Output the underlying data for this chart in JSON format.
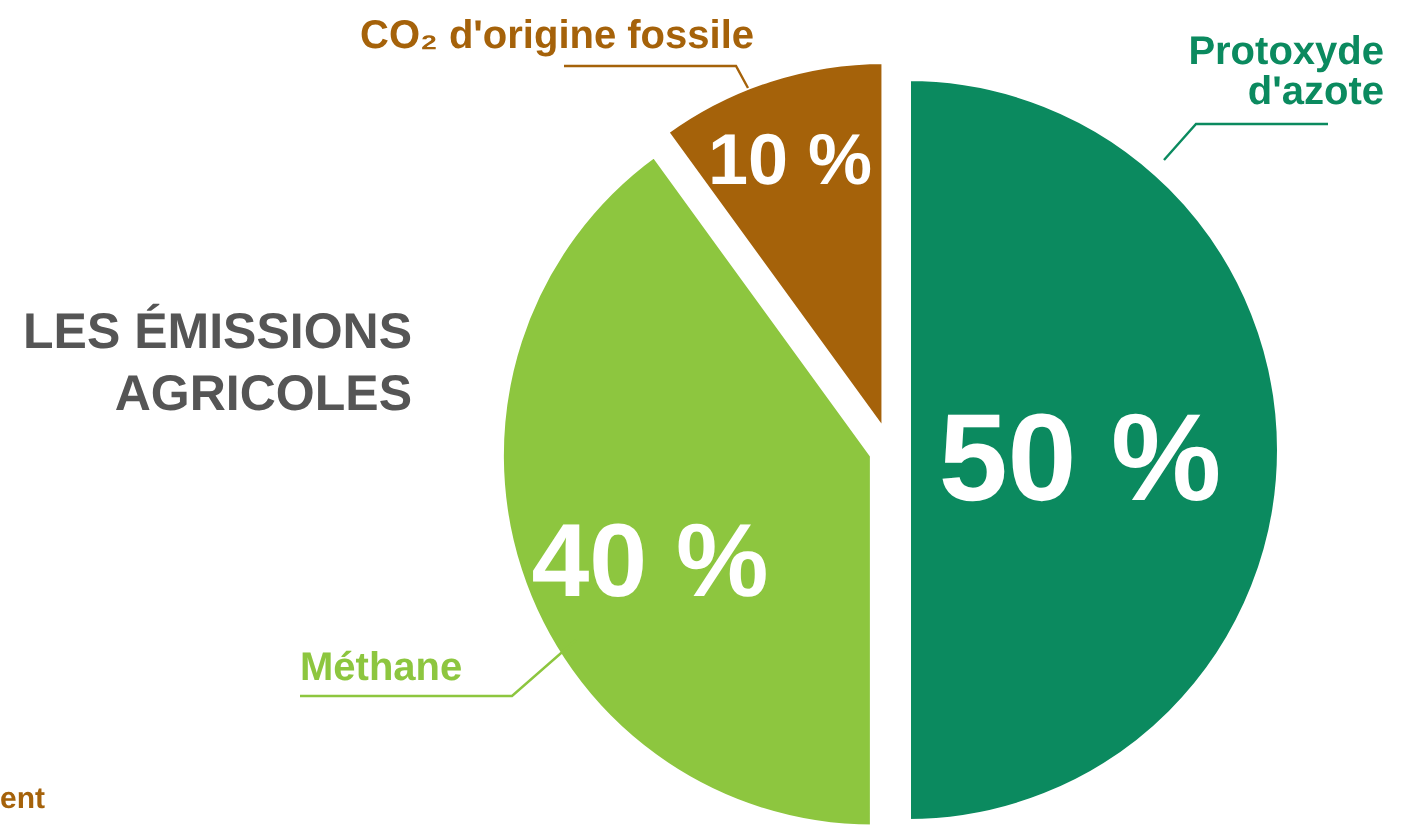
{
  "chart_data": {
    "type": "pie",
    "title": "LES ÉMISSIONS AGRICOLES",
    "categories": [
      "Protoxyde d'azote",
      "Méthane",
      "CO₂ d'origine fossile"
    ],
    "values": [
      50,
      40,
      10
    ],
    "colors": [
      "#0b8a5f",
      "#8dc63f",
      "#a5620a"
    ],
    "value_labels": [
      "50 %",
      "40 %",
      "10 %"
    ],
    "annotations": [
      "ent"
    ]
  }
}
